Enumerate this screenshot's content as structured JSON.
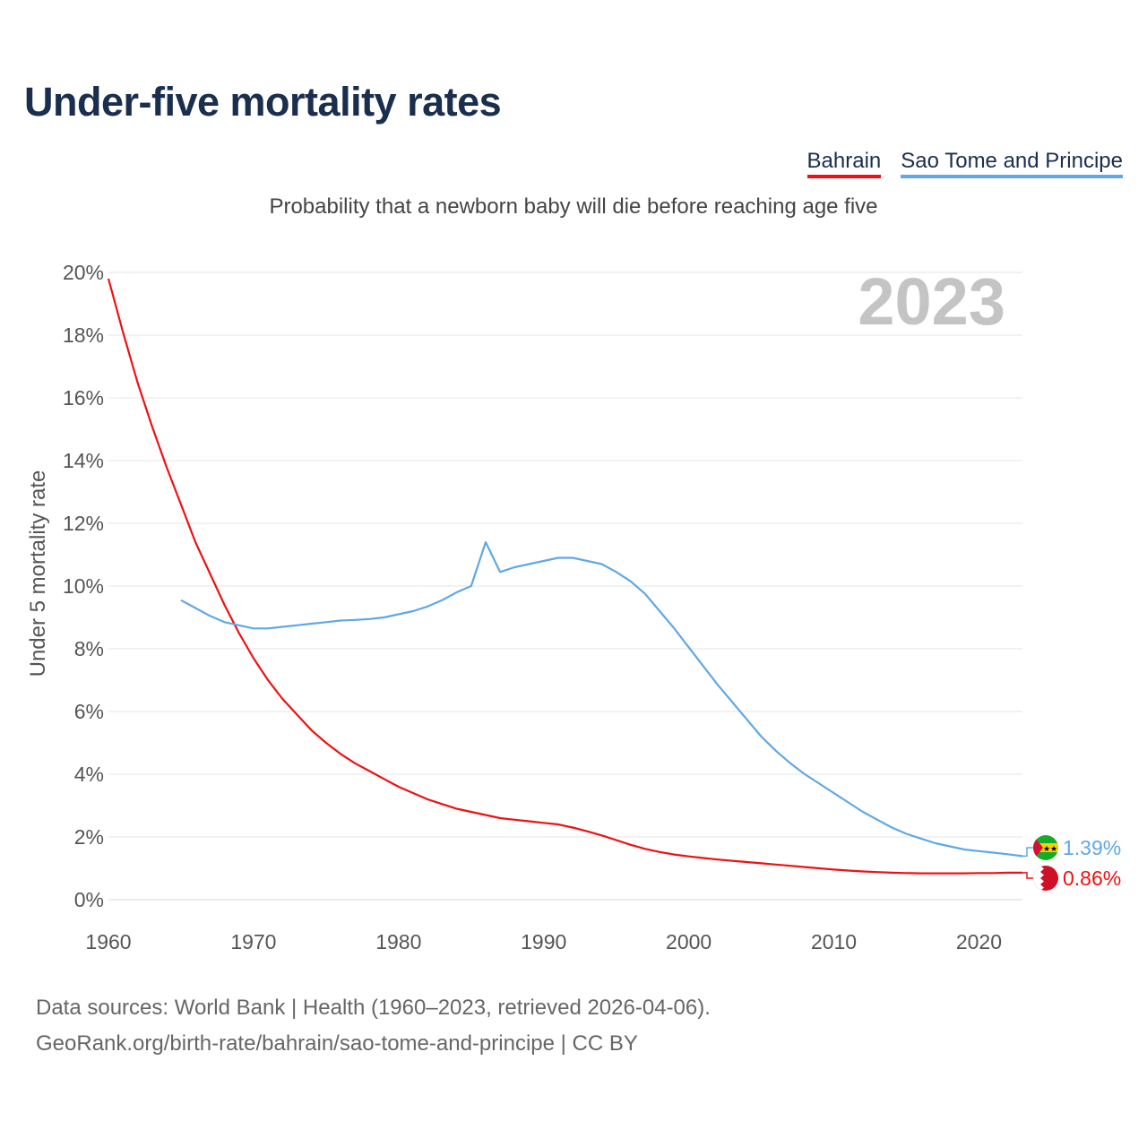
{
  "title": "Under-five mortality rates",
  "subtitle": "Probability that a newborn baby will die before reaching age five",
  "legend": [
    {
      "label": "Bahrain",
      "color": "#ee1111"
    },
    {
      "label": "Sao Tome and Principe",
      "color": "#5fa8e6"
    }
  ],
  "year_watermark": "2023",
  "source_line1": "Data sources: World Bank | Health (1960–2023, retrieved 2026-04-06).",
  "source_line2": "GeoRank.org/birth-rate/bahrain/sao-tome-and-principe | CC BY",
  "chart_data": {
    "type": "line",
    "title": "Under-five mortality rates",
    "ylabel": "Under 5 mortality rate",
    "xlabel": "",
    "xlim": [
      1960,
      2023
    ],
    "ylim": [
      0,
      20
    ],
    "xticks": [
      1960,
      1970,
      1980,
      1990,
      2000,
      2010,
      2020
    ],
    "yticks": [
      0,
      2,
      4,
      6,
      8,
      10,
      12,
      14,
      16,
      18,
      20
    ],
    "ytick_labels": [
      "0%",
      "2%",
      "4%",
      "6%",
      "8%",
      "10%",
      "12%",
      "14%",
      "16%",
      "18%",
      "20%"
    ],
    "grid": true,
    "series": [
      {
        "name": "Bahrain",
        "color": "#ee1111",
        "end_label": "0.86%",
        "x": [
          1960,
          1961,
          1962,
          1963,
          1964,
          1965,
          1966,
          1967,
          1968,
          1969,
          1970,
          1971,
          1972,
          1973,
          1974,
          1975,
          1976,
          1977,
          1978,
          1979,
          1980,
          1981,
          1982,
          1983,
          1984,
          1985,
          1986,
          1987,
          1988,
          1989,
          1990,
          1991,
          1992,
          1993,
          1994,
          1995,
          1996,
          1997,
          1998,
          1999,
          2000,
          2001,
          2002,
          2003,
          2004,
          2005,
          2006,
          2007,
          2008,
          2009,
          2010,
          2011,
          2012,
          2013,
          2014,
          2015,
          2016,
          2017,
          2018,
          2019,
          2020,
          2021,
          2022,
          2023
        ],
        "y": [
          19.8,
          18.1,
          16.5,
          15.1,
          13.8,
          12.6,
          11.4,
          10.4,
          9.4,
          8.5,
          7.7,
          7.0,
          6.4,
          5.9,
          5.4,
          5.0,
          4.65,
          4.35,
          4.1,
          3.85,
          3.6,
          3.4,
          3.2,
          3.05,
          2.9,
          2.8,
          2.7,
          2.6,
          2.55,
          2.5,
          2.45,
          2.4,
          2.3,
          2.18,
          2.05,
          1.9,
          1.75,
          1.62,
          1.52,
          1.44,
          1.38,
          1.33,
          1.28,
          1.24,
          1.2,
          1.16,
          1.12,
          1.08,
          1.04,
          1.0,
          0.96,
          0.93,
          0.9,
          0.88,
          0.86,
          0.85,
          0.84,
          0.84,
          0.84,
          0.84,
          0.85,
          0.85,
          0.86,
          0.86
        ]
      },
      {
        "name": "Sao Tome and Principe",
        "color": "#5fa8e6",
        "end_label": "1.39%",
        "x": [
          1965,
          1966,
          1967,
          1968,
          1969,
          1970,
          1971,
          1972,
          1973,
          1974,
          1975,
          1976,
          1977,
          1978,
          1979,
          1980,
          1981,
          1982,
          1983,
          1984,
          1985,
          1986,
          1987,
          1988,
          1989,
          1990,
          1991,
          1992,
          1993,
          1994,
          1995,
          1996,
          1997,
          1998,
          1999,
          2000,
          2001,
          2002,
          2003,
          2004,
          2005,
          2006,
          2007,
          2008,
          2009,
          2010,
          2011,
          2012,
          2013,
          2014,
          2015,
          2016,
          2017,
          2018,
          2019,
          2020,
          2021,
          2022,
          2023
        ],
        "y": [
          9.55,
          9.3,
          9.05,
          8.85,
          8.75,
          8.65,
          8.65,
          8.7,
          8.75,
          8.8,
          8.85,
          8.9,
          8.92,
          8.95,
          9.0,
          9.1,
          9.2,
          9.35,
          9.55,
          9.8,
          10.0,
          11.4,
          10.45,
          10.6,
          10.7,
          10.8,
          10.9,
          10.9,
          10.8,
          10.7,
          10.45,
          10.15,
          9.75,
          9.2,
          8.65,
          8.05,
          7.45,
          6.85,
          6.3,
          5.75,
          5.2,
          4.75,
          4.35,
          4.0,
          3.7,
          3.4,
          3.1,
          2.8,
          2.55,
          2.3,
          2.1,
          1.95,
          1.8,
          1.7,
          1.6,
          1.55,
          1.5,
          1.45,
          1.39
        ]
      }
    ]
  }
}
